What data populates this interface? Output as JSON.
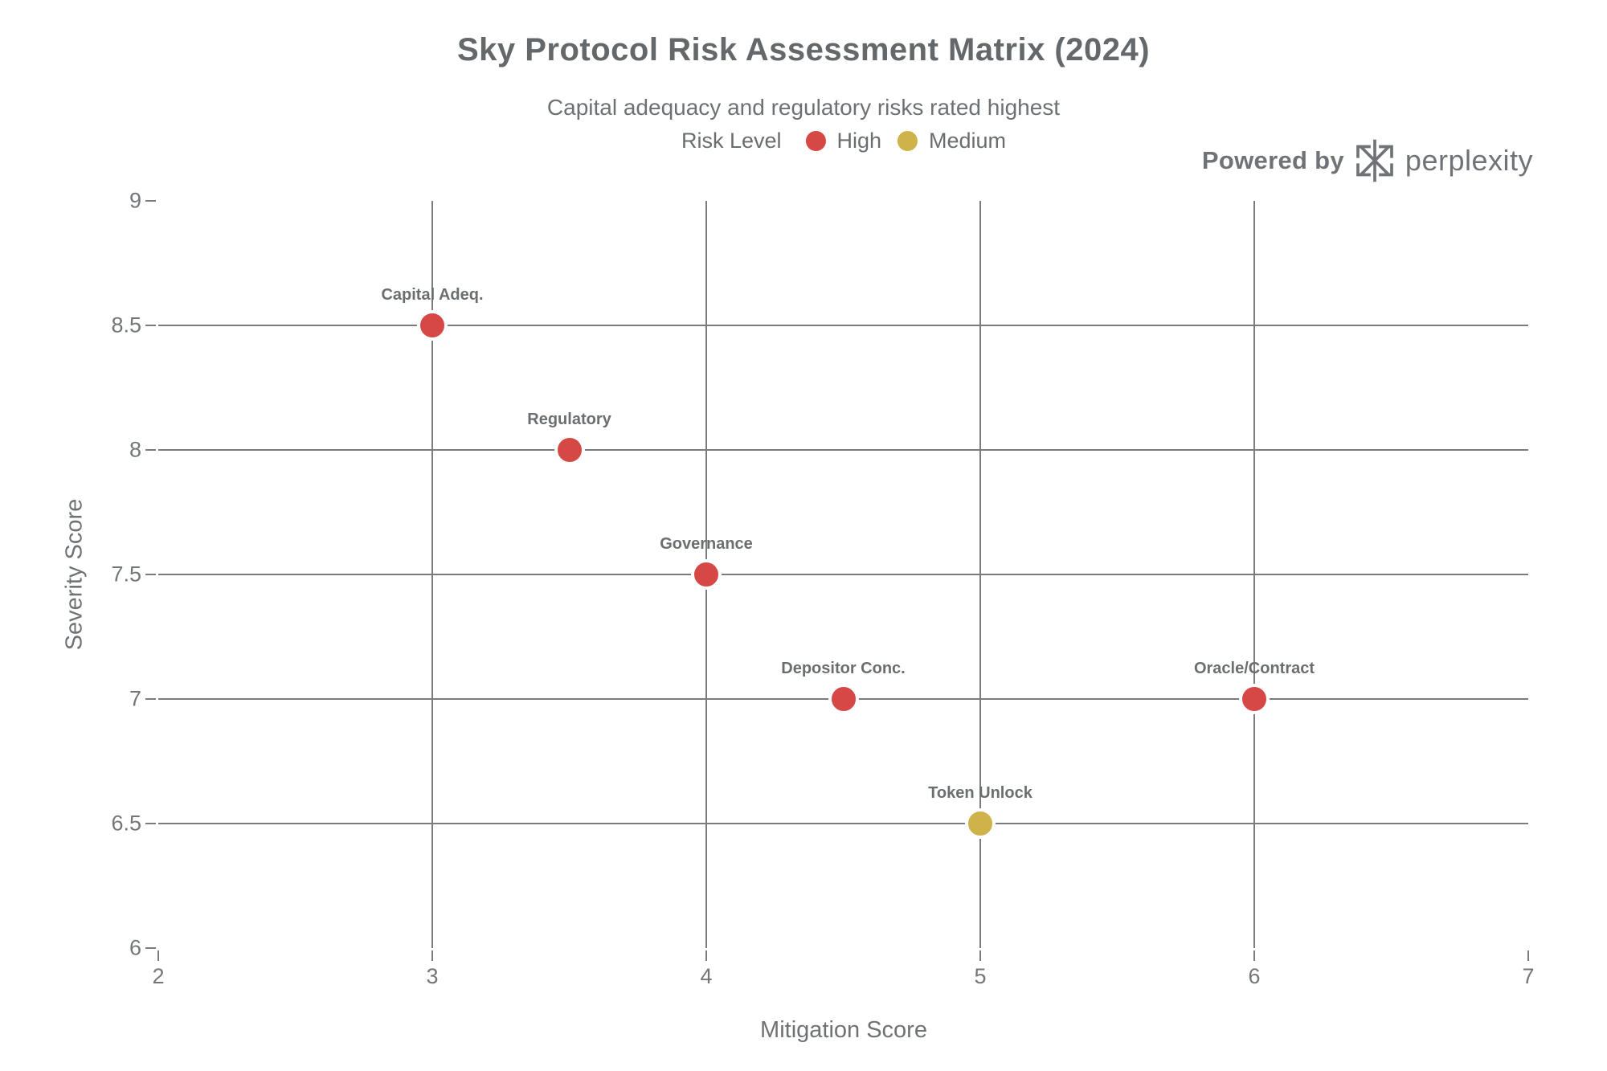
{
  "branding": {
    "powered_by": "Powered by",
    "brand": "perplexity",
    "logo_icon": "perplexity-asterisk-icon",
    "color": "#6f7377"
  },
  "chart_data": {
    "type": "scatter",
    "title": "Sky Protocol Risk Assessment Matrix (2024)",
    "subtitle": "Capital adequacy and regulatory risks rated highest",
    "xlabel": "Mitigation Score",
    "ylabel": "Severity Score",
    "xlim": [
      2,
      7
    ],
    "ylim": [
      6,
      9
    ],
    "x_ticks": [
      2,
      3,
      4,
      5,
      6,
      7
    ],
    "y_ticks": [
      6,
      6.5,
      7,
      7.5,
      8,
      8.5,
      9
    ],
    "grid": true,
    "grid_color": "#7b7b7b",
    "background_color": "#ffffff",
    "legend": {
      "title": "Risk Level",
      "position": "top-center",
      "entries": [
        {
          "label": "High",
          "color": "#d64846"
        },
        {
          "label": "Medium",
          "color": "#cdb34a"
        }
      ]
    },
    "points": [
      {
        "label": "Capital Adeq.",
        "x": 3,
        "y": 8.5,
        "risk": "High"
      },
      {
        "label": "Regulatory",
        "x": 3.5,
        "y": 8,
        "risk": "High"
      },
      {
        "label": "Governance",
        "x": 4,
        "y": 7.5,
        "risk": "High"
      },
      {
        "label": "Depositor Conc.",
        "x": 4.5,
        "y": 7,
        "risk": "High"
      },
      {
        "label": "Oracle/Contract",
        "x": 6,
        "y": 7,
        "risk": "High"
      },
      {
        "label": "Token Unlock",
        "x": 5,
        "y": 6.5,
        "risk": "Medium"
      }
    ]
  }
}
